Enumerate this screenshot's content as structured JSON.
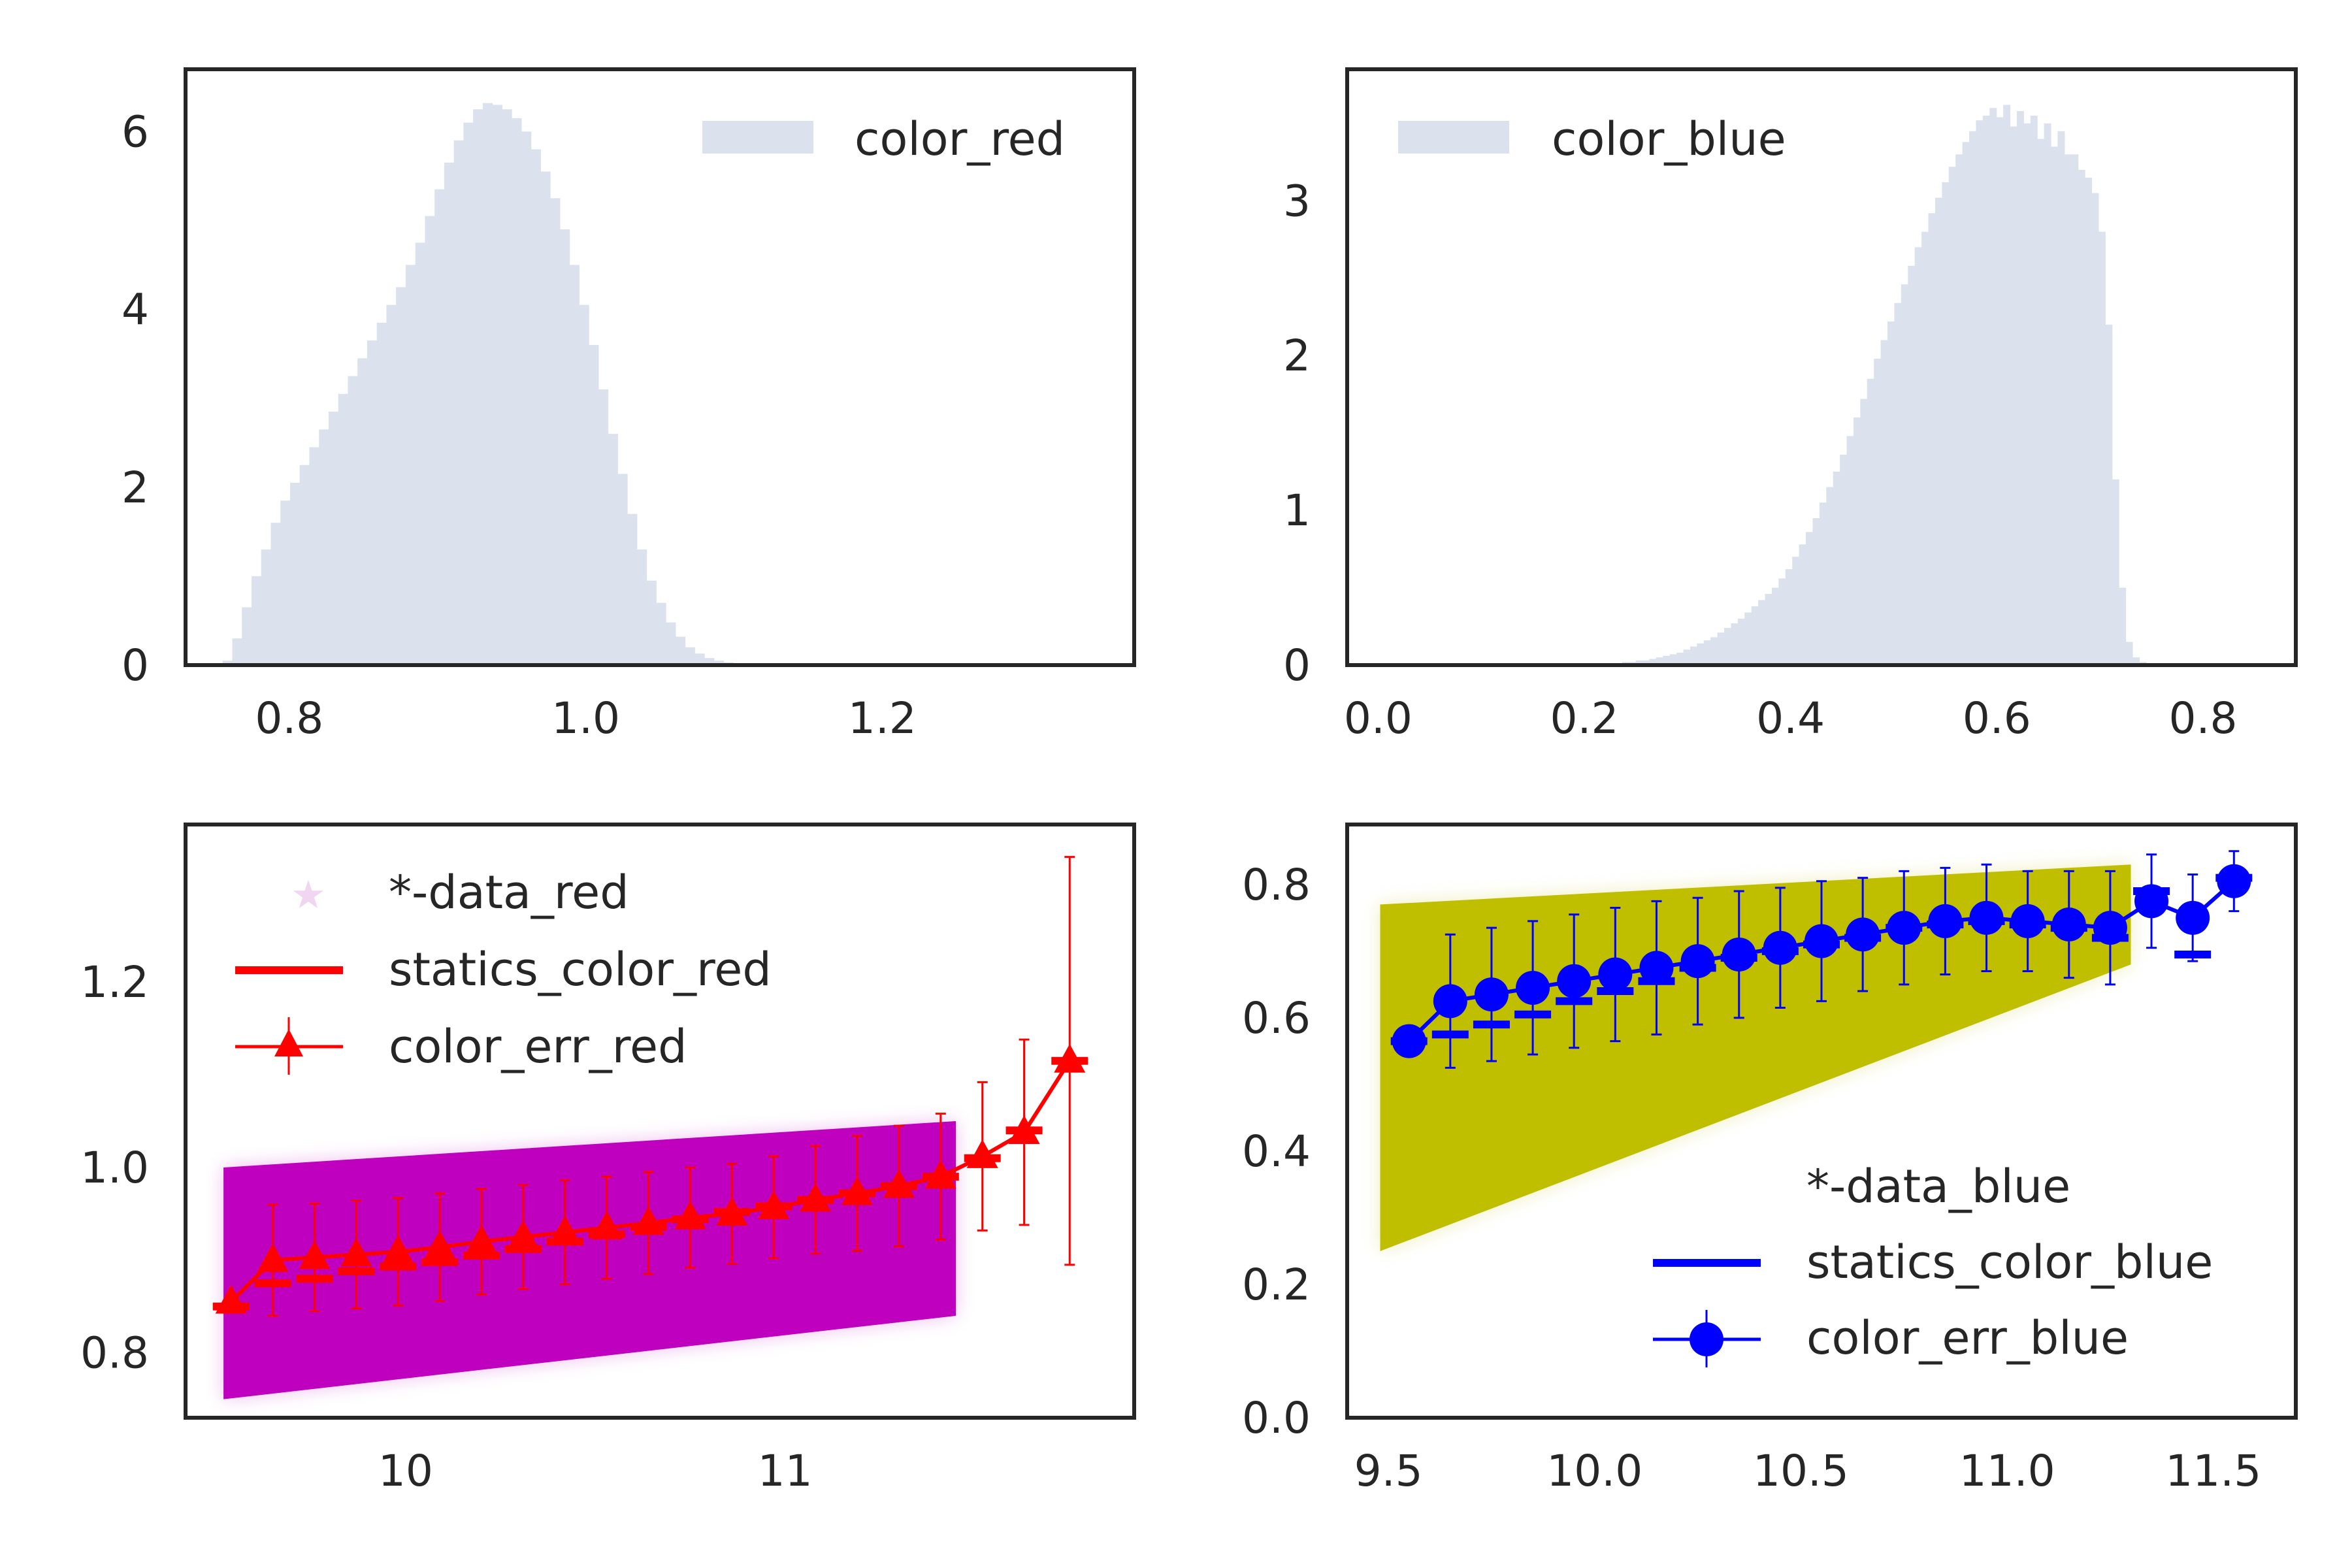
{
  "chart_data": [
    {
      "type": "histogram",
      "position": "top-left",
      "series": [
        {
          "name": "color_red",
          "color": "#dbe2ee"
        }
      ],
      "xlim": [
        0.73,
        1.37
      ],
      "ylim": [
        0,
        6.7
      ],
      "xticks": [
        {
          "v": 0.8,
          "label": "0.8"
        },
        {
          "v": 1.0,
          "label": "1.0"
        },
        {
          "v": 1.2,
          "label": "1.2"
        }
      ],
      "yticks": [
        {
          "v": 0,
          "label": "0"
        },
        {
          "v": 2,
          "label": "2"
        },
        {
          "v": 4,
          "label": "4"
        },
        {
          "v": 6,
          "label": "6"
        }
      ],
      "bin_start": 0.755,
      "bin_width": 0.0065,
      "values": [
        0.05,
        0.3,
        0.65,
        1.0,
        1.3,
        1.6,
        1.85,
        2.05,
        2.25,
        2.45,
        2.65,
        2.85,
        3.05,
        3.25,
        3.45,
        3.65,
        3.85,
        4.05,
        4.25,
        4.5,
        4.75,
        5.05,
        5.35,
        5.65,
        5.9,
        6.1,
        6.25,
        6.32,
        6.3,
        6.25,
        6.15,
        6.0,
        5.8,
        5.55,
        5.25,
        4.9,
        4.5,
        4.05,
        3.6,
        3.1,
        2.6,
        2.15,
        1.7,
        1.3,
        0.95,
        0.7,
        0.48,
        0.32,
        0.2,
        0.13,
        0.08,
        0.05,
        0.03,
        0.02
      ],
      "legend": "upper right"
    },
    {
      "type": "histogram",
      "position": "top-right",
      "series": [
        {
          "name": "color_blue",
          "color": "#dbe2ee"
        }
      ],
      "xlim": [
        -0.03,
        0.89
      ],
      "ylim": [
        0,
        3.85
      ],
      "xticks": [
        {
          "v": 0.0,
          "label": "0.0"
        },
        {
          "v": 0.2,
          "label": "0.2"
        },
        {
          "v": 0.4,
          "label": "0.4"
        },
        {
          "v": 0.6,
          "label": "0.6"
        },
        {
          "v": 0.8,
          "label": "0.8"
        }
      ],
      "yticks": [
        {
          "v": 0,
          "label": "0"
        },
        {
          "v": 1,
          "label": "1"
        },
        {
          "v": 2,
          "label": "2"
        },
        {
          "v": 3,
          "label": "3"
        }
      ],
      "bin_start": 0.23,
      "bin_width": 0.0066,
      "values": [
        0.01,
        0.02,
        0.02,
        0.03,
        0.03,
        0.04,
        0.05,
        0.06,
        0.07,
        0.08,
        0.1,
        0.12,
        0.14,
        0.16,
        0.18,
        0.21,
        0.24,
        0.27,
        0.3,
        0.34,
        0.38,
        0.42,
        0.46,
        0.5,
        0.56,
        0.62,
        0.7,
        0.78,
        0.86,
        0.95,
        1.05,
        1.15,
        1.25,
        1.36,
        1.48,
        1.6,
        1.72,
        1.85,
        1.98,
        2.1,
        2.22,
        2.34,
        2.46,
        2.58,
        2.7,
        2.8,
        2.92,
        3.02,
        3.12,
        3.22,
        3.3,
        3.38,
        3.45,
        3.52,
        3.55,
        3.6,
        3.54,
        3.62,
        3.48,
        3.58,
        3.5,
        3.55,
        3.4,
        3.5,
        3.35,
        3.45,
        3.3,
        3.3,
        3.2,
        3.15,
        3.05,
        2.8,
        2.2,
        1.2,
        0.5,
        0.15,
        0.05,
        0.02
      ],
      "legend": "upper left"
    },
    {
      "type": "scatter",
      "position": "bottom-left",
      "xlim": [
        9.42,
        11.92
      ],
      "ylim": [
        0.73,
        1.37
      ],
      "xticks": [
        {
          "v": 10,
          "label": "10"
        },
        {
          "v": 11,
          "label": "11"
        }
      ],
      "yticks": [
        {
          "v": 0.8,
          "label": "0.8"
        },
        {
          "v": 1.0,
          "label": "1.0"
        },
        {
          "v": 1.2,
          "label": "1.2"
        }
      ],
      "scatter_series": {
        "name": "*-data_red",
        "color": "#bf00bf",
        "region": {
          "x": [
            9.52,
            11.45
          ],
          "y_low": [
            0.75,
            0.84
          ],
          "y_high": [
            1.0,
            1.05
          ]
        }
      },
      "statics_series": {
        "name": "statics_color_red",
        "color": "#ff0000",
        "x": [
          9.54,
          9.65,
          9.76,
          9.87,
          9.98,
          10.09,
          10.2,
          10.31,
          10.42,
          10.53,
          10.64,
          10.75,
          10.86,
          10.97,
          11.08,
          11.19,
          11.3,
          11.41,
          11.52,
          11.63,
          11.75
        ],
        "y": [
          0.85,
          0.875,
          0.88,
          0.888,
          0.893,
          0.898,
          0.905,
          0.912,
          0.92,
          0.928,
          0.936,
          0.944,
          0.952,
          0.958,
          0.965,
          0.972,
          0.98,
          0.99,
          1.01,
          1.04,
          1.115
        ]
      },
      "err_series": {
        "name": "color_err_red",
        "color": "#ff0000",
        "x": [
          9.54,
          9.65,
          9.76,
          9.87,
          9.98,
          10.09,
          10.2,
          10.31,
          10.42,
          10.53,
          10.64,
          10.75,
          10.86,
          10.97,
          11.08,
          11.19,
          11.3,
          11.41,
          11.52,
          11.63,
          11.75
        ],
        "y": [
          0.855,
          0.9,
          0.903,
          0.906,
          0.909,
          0.914,
          0.92,
          0.925,
          0.93,
          0.935,
          0.94,
          0.946,
          0.95,
          0.957,
          0.965,
          0.972,
          0.98,
          0.99,
          1.012,
          1.038,
          1.115
        ],
        "err": [
          0.0,
          0.06,
          0.058,
          0.058,
          0.058,
          0.058,
          0.057,
          0.056,
          0.056,
          0.055,
          0.055,
          0.054,
          0.054,
          0.055,
          0.058,
          0.062,
          0.065,
          0.068,
          0.08,
          0.1,
          0.22
        ]
      },
      "legend": "upper left"
    },
    {
      "type": "scatter",
      "position": "bottom-right",
      "xlim": [
        9.4,
        11.7
      ],
      "ylim": [
        0.0,
        0.89
      ],
      "xticks": [
        {
          "v": 9.5,
          "label": "9.5"
        },
        {
          "v": 10.0,
          "label": "10.0"
        },
        {
          "v": 10.5,
          "label": "10.5"
        },
        {
          "v": 11.0,
          "label": "11.0"
        },
        {
          "v": 11.5,
          "label": "11.5"
        }
      ],
      "yticks": [
        {
          "v": 0.0,
          "label": "0.0"
        },
        {
          "v": 0.2,
          "label": "0.2"
        },
        {
          "v": 0.4,
          "label": "0.4"
        },
        {
          "v": 0.6,
          "label": "0.6"
        },
        {
          "v": 0.8,
          "label": "0.8"
        }
      ],
      "scatter_series": {
        "name": "*-data_blue",
        "color": "#bfbf00",
        "region": {
          "x": [
            9.48,
            11.3
          ],
          "y_low": [
            0.25,
            0.68
          ],
          "y_high": [
            0.77,
            0.83
          ]
        }
      },
      "statics_series": {
        "name": "statics_color_blue",
        "color": "#0000ff",
        "x": [
          9.55,
          9.65,
          9.75,
          9.85,
          9.95,
          10.05,
          10.15,
          10.25,
          10.35,
          10.45,
          10.55,
          10.65,
          10.75,
          10.85,
          10.95,
          11.05,
          11.15,
          11.25,
          11.35,
          11.45,
          11.55
        ],
        "y": [
          0.565,
          0.575,
          0.59,
          0.605,
          0.625,
          0.64,
          0.655,
          0.675,
          0.69,
          0.7,
          0.71,
          0.72,
          0.735,
          0.74,
          0.745,
          0.74,
          0.735,
          0.72,
          0.79,
          0.695,
          0.81
        ]
      },
      "err_series": {
        "name": "color_err_blue",
        "color": "#0000ff",
        "x": [
          9.55,
          9.65,
          9.75,
          9.85,
          9.95,
          10.05,
          10.15,
          10.25,
          10.35,
          10.45,
          10.55,
          10.65,
          10.75,
          10.85,
          10.95,
          11.05,
          11.15,
          11.25,
          11.35,
          11.45,
          11.55
        ],
        "y": [
          0.565,
          0.625,
          0.635,
          0.645,
          0.655,
          0.665,
          0.675,
          0.685,
          0.695,
          0.705,
          0.715,
          0.725,
          0.735,
          0.745,
          0.75,
          0.745,
          0.74,
          0.735,
          0.775,
          0.75,
          0.805
        ],
        "err": [
          0.0,
          0.1,
          0.1,
          0.1,
          0.1,
          0.1,
          0.1,
          0.095,
          0.095,
          0.09,
          0.09,
          0.085,
          0.085,
          0.08,
          0.08,
          0.075,
          0.08,
          0.085,
          0.07,
          0.065,
          0.045
        ]
      },
      "legend": "lower right"
    }
  ]
}
